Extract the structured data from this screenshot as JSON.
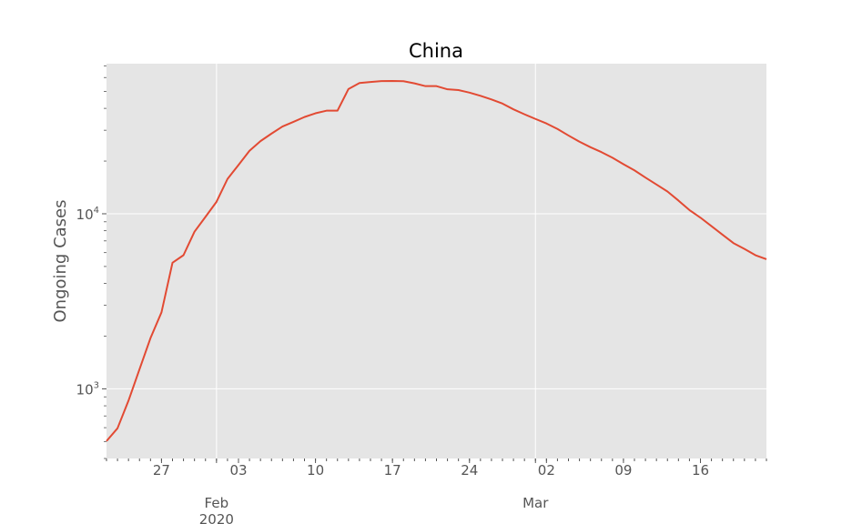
{
  "chart_data": {
    "type": "line",
    "title": "China",
    "xlabel": "",
    "ylabel": "Ongoing Cases",
    "yscale": "log",
    "ylim": [
      400,
      72000
    ],
    "xlim": [
      "2020-01-22",
      "2020-03-22"
    ],
    "grid": true,
    "line_color": "#E24A33",
    "background_color": "#E5E5E5",
    "grid_color": "#FFFFFF",
    "x_ticks_minor": [
      {
        "date": "2020-01-27",
        "label": "27"
      },
      {
        "date": "2020-02-03",
        "label": "03"
      },
      {
        "date": "2020-02-10",
        "label": "10"
      },
      {
        "date": "2020-02-17",
        "label": "17"
      },
      {
        "date": "2020-02-24",
        "label": "24"
      },
      {
        "date": "2020-03-02",
        "label": "02"
      },
      {
        "date": "2020-03-09",
        "label": "09"
      },
      {
        "date": "2020-03-16",
        "label": "16"
      }
    ],
    "x_ticks_major": [
      {
        "date": "2020-02-01",
        "label": "Feb",
        "sublabel": "2020"
      },
      {
        "date": "2020-03-01",
        "label": "Mar",
        "sublabel": ""
      }
    ],
    "y_ticks": [
      {
        "value": 1000,
        "base": "10",
        "exp": "3"
      },
      {
        "value": 10000,
        "base": "10",
        "exp": "4"
      }
    ],
    "series": [
      {
        "name": "",
        "x": [
          "2020-01-22",
          "2020-01-23",
          "2020-01-24",
          "2020-01-25",
          "2020-01-26",
          "2020-01-27",
          "2020-01-28",
          "2020-01-29",
          "2020-01-30",
          "2020-01-31",
          "2020-02-01",
          "2020-02-02",
          "2020-02-03",
          "2020-02-04",
          "2020-02-05",
          "2020-02-06",
          "2020-02-07",
          "2020-02-08",
          "2020-02-09",
          "2020-02-10",
          "2020-02-11",
          "2020-02-12",
          "2020-02-13",
          "2020-02-14",
          "2020-02-15",
          "2020-02-16",
          "2020-02-17",
          "2020-02-18",
          "2020-02-19",
          "2020-02-20",
          "2020-02-21",
          "2020-02-22",
          "2020-02-23",
          "2020-02-24",
          "2020-02-25",
          "2020-02-26",
          "2020-02-27",
          "2020-02-28",
          "2020-02-29",
          "2020-03-01",
          "2020-03-02",
          "2020-03-03",
          "2020-03-04",
          "2020-03-05",
          "2020-03-06",
          "2020-03-07",
          "2020-03-08",
          "2020-03-09",
          "2020-03-10",
          "2020-03-11",
          "2020-03-12",
          "2020-03-13",
          "2020-03-14",
          "2020-03-15",
          "2020-03-16",
          "2020-03-17",
          "2020-03-18",
          "2020-03-19",
          "2020-03-20",
          "2020-03-21",
          "2020-03-22"
        ],
        "y": [
          503,
          595,
          856,
          1293,
          1949,
          2735,
          5250,
          5800,
          7900,
          9600,
          11700,
          15800,
          19000,
          22900,
          26000,
          28700,
          31500,
          33500,
          35700,
          37500,
          38800,
          38800,
          51600,
          55800,
          56600,
          57300,
          57400,
          57200,
          55600,
          53600,
          53600,
          51400,
          50900,
          49200,
          47200,
          45000,
          42600,
          39500,
          37000,
          34800,
          32800,
          30500,
          28000,
          25800,
          24000,
          22500,
          20900,
          19200,
          17700,
          16100,
          14700,
          13400,
          11900,
          10500,
          9500,
          8500,
          7600,
          6800,
          6300,
          5800,
          5500
        ]
      }
    ]
  }
}
